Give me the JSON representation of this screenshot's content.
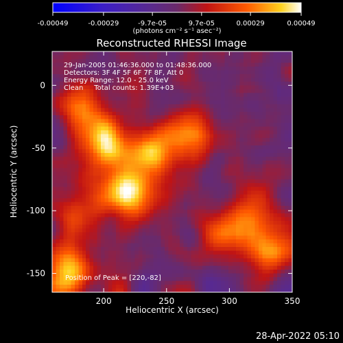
{
  "chart_data": {
    "type": "heatmap",
    "title": "Reconstructed RHESSI Image",
    "xlabel": "Heliocentric X (arcsec)",
    "ylabel": "Heliocentric Y (arcsec)",
    "xlim": [
      159,
      350
    ],
    "ylim": [
      -165,
      27
    ],
    "x_ticks": [
      200,
      250,
      300,
      350
    ],
    "y_ticks": [
      0,
      -50,
      -100,
      -150
    ],
    "colorbar": {
      "ticks": [
        "-0.00049",
        "-0.00029",
        "-9.7e-05",
        "9.7e-05",
        "0.00029",
        "0.00049"
      ],
      "values": [
        -0.00049,
        -0.00029,
        -9.7e-05,
        9.7e-05,
        0.00029,
        0.00049
      ],
      "range": [
        -0.00049,
        0.00049
      ],
      "unit_label": "(photons cm⁻² s⁻¹ asec⁻²)",
      "colormap": "blue-purple-red-yellow-white"
    },
    "annotations": [
      "29-Jan-2005 01:46:36.000 to 01:48:36.000",
      "Detectors: 3F 4F 5F 6F 7F 8F, Att 0",
      "Energy Range: 12.0 - 25.0 keV",
      "Clean     Total counts: 1.39E+03"
    ],
    "peak_label": "Position of Peak = [220,-82]",
    "peak": [
      220,
      -82
    ],
    "sources": [
      {
        "x": 220,
        "y": -82,
        "peak": 0.00049
      },
      {
        "x": 200,
        "y": -45,
        "peak": 0.00042
      },
      {
        "x": 240,
        "y": -55,
        "peak": 0.00036
      },
      {
        "x": 270,
        "y": -40,
        "peak": 0.0003
      },
      {
        "x": 185,
        "y": -15,
        "peak": 0.00025
      },
      {
        "x": 320,
        "y": -110,
        "peak": 0.0003
      },
      {
        "x": 295,
        "y": -120,
        "peak": 0.00024
      },
      {
        "x": 330,
        "y": -135,
        "peak": 0.00022
      },
      {
        "x": 170,
        "y": -150,
        "peak": 0.0004
      },
      {
        "x": 175,
        "y": -110,
        "peak": 0.00018
      }
    ]
  },
  "footer": {
    "timestamp": "28-Apr-2022 05:10"
  }
}
